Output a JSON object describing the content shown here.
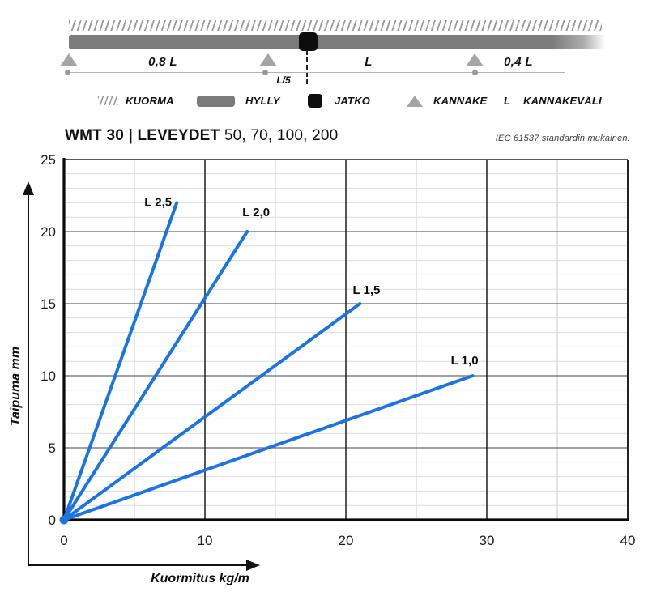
{
  "diagram": {
    "spans": {
      "left": "0,8 L",
      "mid": "L",
      "right": "0,4 L",
      "joint_offset": "L/5"
    },
    "legend": [
      {
        "icon": "hatch-swatch",
        "label": "KUORMA"
      },
      {
        "icon": "shelf-swatch",
        "label": "HYLLY"
      },
      {
        "icon": "joint-swatch",
        "label": "JATKO"
      },
      {
        "icon": "support-swatch",
        "label": "KANNAKE"
      },
      {
        "icon": "letter-l",
        "label": "KANNAKEVÄLI",
        "symbol": "L"
      }
    ],
    "colors": {
      "shelf_gray": "#7b7b7b",
      "support_gray": "#a5a5a5",
      "joint_black": "#0d0d0d"
    }
  },
  "header": {
    "title_bold": "WMT 30 | LEVEYDET",
    "title_widths": "50, 70, 100, 200",
    "standard_note": "IEC 61537 standardin mukainen."
  },
  "chart_data": {
    "type": "line",
    "title": "WMT 30 | LEVEYDET 50, 70, 100, 200",
    "xlabel": "Kuormitus kg/m",
    "ylabel": "Taipuma mm",
    "xlim": [
      0,
      40
    ],
    "ylim": [
      0,
      25
    ],
    "x_major_ticks": [
      0,
      10,
      20,
      30,
      40
    ],
    "y_major_ticks": [
      0,
      5,
      10,
      15,
      20,
      25
    ],
    "x_minor_step": 5,
    "y_minor_step": 1,
    "grid": true,
    "legend_position": "inline-labels",
    "line_color": "#1b74e4",
    "series": [
      {
        "name": "L 2,5",
        "points": [
          [
            0,
            0
          ],
          [
            8,
            22
          ]
        ]
      },
      {
        "name": "L 2,0",
        "points": [
          [
            0,
            0
          ],
          [
            13,
            20
          ]
        ]
      },
      {
        "name": "L 1,5",
        "points": [
          [
            0,
            0
          ],
          [
            21,
            15
          ]
        ]
      },
      {
        "name": "L 1,0",
        "points": [
          [
            0,
            0
          ],
          [
            29,
            10
          ]
        ]
      }
    ]
  }
}
